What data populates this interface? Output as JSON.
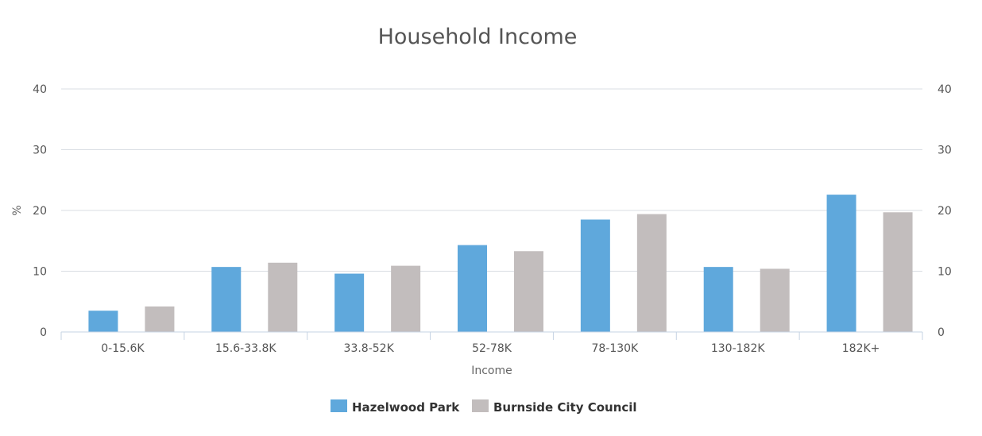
{
  "chart_data": {
    "type": "bar",
    "title": "Household Income",
    "xlabel": "Income",
    "ylabel": "%",
    "ylim": [
      0,
      40
    ],
    "yticks": [
      0,
      10,
      20,
      30,
      40
    ],
    "grid": true,
    "legend_position": "bottom-center",
    "categories": [
      "0-15.6K",
      "15.6-33.8K",
      "33.8-52K",
      "52-78K",
      "78-130K",
      "130-182K",
      "182K+"
    ],
    "series": [
      {
        "name": "Hazelwood Park",
        "color": "#5fa8dc",
        "values": [
          3.5,
          10.7,
          9.6,
          14.3,
          18.5,
          10.7,
          22.6
        ]
      },
      {
        "name": "Burnside City Council",
        "color": "#c2bdbd",
        "values": [
          4.2,
          11.4,
          10.9,
          13.3,
          19.4,
          10.4,
          19.7
        ]
      }
    ]
  }
}
